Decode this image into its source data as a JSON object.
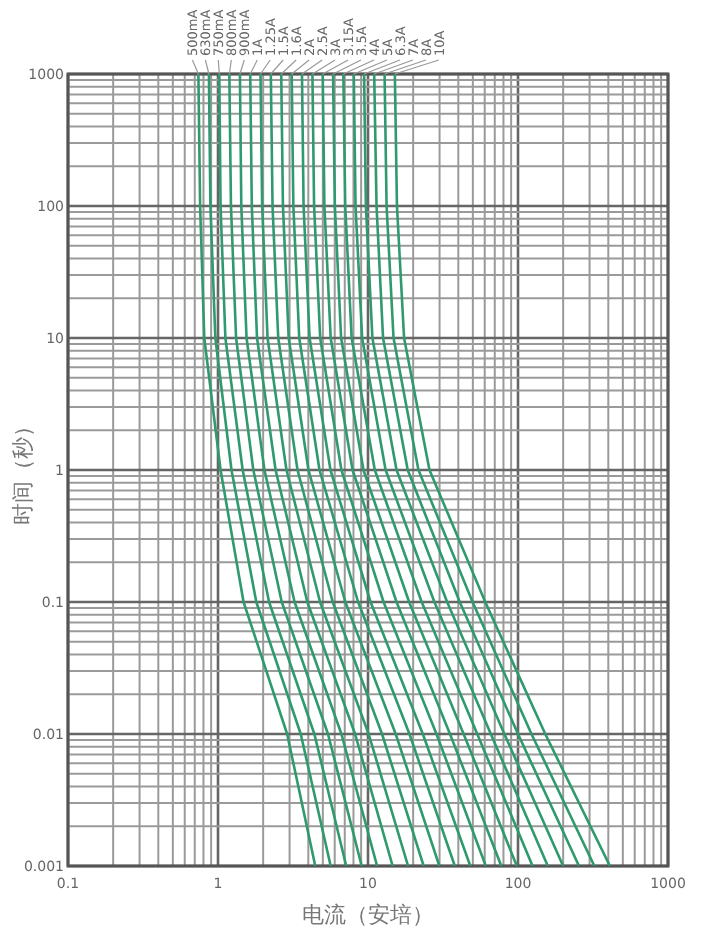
{
  "chart_data": {
    "type": "line",
    "xlabel": "电流（安培）",
    "ylabel": "时间（秒）",
    "log": "xy",
    "xlim": [
      0.1,
      1000
    ],
    "ylim": [
      0.001,
      1000
    ],
    "xticks": [
      0.1,
      1,
      10,
      100,
      1000
    ],
    "yticks": [
      0.001,
      0.01,
      0.1,
      1,
      10,
      100,
      1000
    ],
    "grid": true,
    "line_style": "solid",
    "series": [
      {
        "name": "500mA",
        "color": "#2e9a6e",
        "x": [
          0.74,
          0.76,
          0.81,
          1.04,
          1.48,
          2.89,
          4.45
        ],
        "values": [
          1000,
          100,
          10,
          1,
          0.1,
          0.01,
          0.001
        ]
      },
      {
        "name": "630mA",
        "color": "#2e9a6e",
        "x": [
          0.87,
          0.89,
          0.96,
          1.23,
          1.8,
          3.56,
          5.64
        ],
        "values": [
          1000,
          100,
          10,
          1,
          0.1,
          0.01,
          0.001
        ]
      },
      {
        "name": "750mA",
        "color": "#2e9a6e",
        "x": [
          1.02,
          1.04,
          1.12,
          1.46,
          2.19,
          4.39,
          7.16
        ],
        "values": [
          1000,
          100,
          10,
          1,
          0.1,
          0.01,
          0.001
        ]
      },
      {
        "name": "800mA",
        "color": "#2e9a6e",
        "x": [
          1.19,
          1.22,
          1.32,
          1.72,
          2.66,
          5.41,
          9.08
        ],
        "values": [
          1000,
          100,
          10,
          1,
          0.1,
          0.01,
          0.001
        ]
      },
      {
        "name": "900mA",
        "color": "#2e9a6e",
        "x": [
          1.4,
          1.43,
          1.55,
          2.04,
          3.24,
          6.65,
          11.5
        ],
        "values": [
          1000,
          100,
          10,
          1,
          0.1,
          0.01,
          0.001
        ]
      },
      {
        "name": "1A",
        "color": "#2e9a6e",
        "x": [
          1.64,
          1.68,
          1.82,
          2.42,
          3.94,
          8.2,
          14.6
        ],
        "values": [
          1000,
          100,
          10,
          1,
          0.1,
          0.01,
          0.001
        ]
      },
      {
        "name": "1.25A",
        "color": "#2e9a6e",
        "x": [
          1.92,
          1.97,
          2.14,
          2.86,
          4.79,
          10.1,
          18.5
        ],
        "values": [
          1000,
          100,
          10,
          1,
          0.1,
          0.01,
          0.001
        ]
      },
      {
        "name": "1.5A",
        "color": "#2e9a6e",
        "x": [
          2.25,
          2.31,
          2.52,
          3.39,
          5.82,
          12.4,
          23.5
        ],
        "values": [
          1000,
          100,
          10,
          1,
          0.1,
          0.01,
          0.001
        ]
      },
      {
        "name": "1.6A",
        "color": "#2e9a6e",
        "x": [
          2.64,
          2.71,
          2.96,
          4.01,
          7.06,
          15.3,
          29.9
        ],
        "values": [
          1000,
          100,
          10,
          1,
          0.1,
          0.01,
          0.001
        ]
      },
      {
        "name": "2A",
        "color": "#2e9a6e",
        "x": [
          3.1,
          3.18,
          3.48,
          4.75,
          8.59,
          18.9,
          37.9
        ],
        "values": [
          1000,
          100,
          10,
          1,
          0.1,
          0.01,
          0.001
        ]
      },
      {
        "name": "2.5A",
        "color": "#2e9a6e",
        "x": [
          3.63,
          3.72,
          4.08,
          5.62,
          10.4,
          23.2,
          48.1
        ],
        "values": [
          1000,
          100,
          10,
          1,
          0.1,
          0.01,
          0.001
        ]
      },
      {
        "name": "3A",
        "color": "#2e9a6e",
        "x": [
          4.26,
          4.37,
          4.8,
          6.65,
          12.7,
          28.6,
          61
        ],
        "values": [
          1000,
          100,
          10,
          1,
          0.1,
          0.01,
          0.001
        ]
      },
      {
        "name": "3.15A",
        "color": "#2e9a6e",
        "x": [
          4.99,
          5.12,
          5.64,
          7.89,
          15.5,
          35.2,
          77.4
        ],
        "values": [
          1000,
          100,
          10,
          1,
          0.1,
          0.01,
          0.001
        ]
      },
      {
        "name": "3.5A",
        "color": "#2e9a6e",
        "x": [
          5.85,
          6.01,
          6.62,
          9.33,
          18.8,
          43.4,
          98.2
        ],
        "values": [
          1000,
          100,
          10,
          1,
          0.1,
          0.01,
          0.001
        ]
      },
      {
        "name": "4A",
        "color": "#2e9a6e",
        "x": [
          6.85,
          7.05,
          7.78,
          11.1,
          22.8,
          53.5,
          125
        ],
        "values": [
          1000,
          100,
          10,
          1,
          0.1,
          0.01,
          0.001
        ]
      },
      {
        "name": "5A",
        "color": "#2e9a6e",
        "x": [
          8.04,
          8.26,
          9.14,
          13.1,
          27.7,
          65.9,
          158
        ],
        "values": [
          1000,
          100,
          10,
          1,
          0.1,
          0.01,
          0.001
        ]
      },
      {
        "name": "6.3A",
        "color": "#2e9a6e",
        "x": [
          9.42,
          9.68,
          10.7,
          15.5,
          33.7,
          81.1,
          200
        ],
        "values": [
          1000,
          100,
          10,
          1,
          0.1,
          0.01,
          0.001
        ]
      },
      {
        "name": "7A",
        "color": "#2e9a6e",
        "x": [
          11,
          11.4,
          12.6,
          18.4,
          40.9,
          100,
          255
        ],
        "values": [
          1000,
          100,
          10,
          1,
          0.1,
          0.01,
          0.001
        ]
      },
      {
        "name": "8A",
        "color": "#2e9a6e",
        "x": [
          12.9,
          13.3,
          14.8,
          21.7,
          49.8,
          123,
          323
        ],
        "values": [
          1000,
          100,
          10,
          1,
          0.1,
          0.01,
          0.001
        ]
      },
      {
        "name": "10A",
        "color": "#2e9a6e",
        "x": [
          15.1,
          15.6,
          17.4,
          25.7,
          60.5,
          152,
          410
        ],
        "values": [
          1000,
          100,
          10,
          1,
          0.1,
          0.01,
          0.001
        ]
      }
    ]
  }
}
